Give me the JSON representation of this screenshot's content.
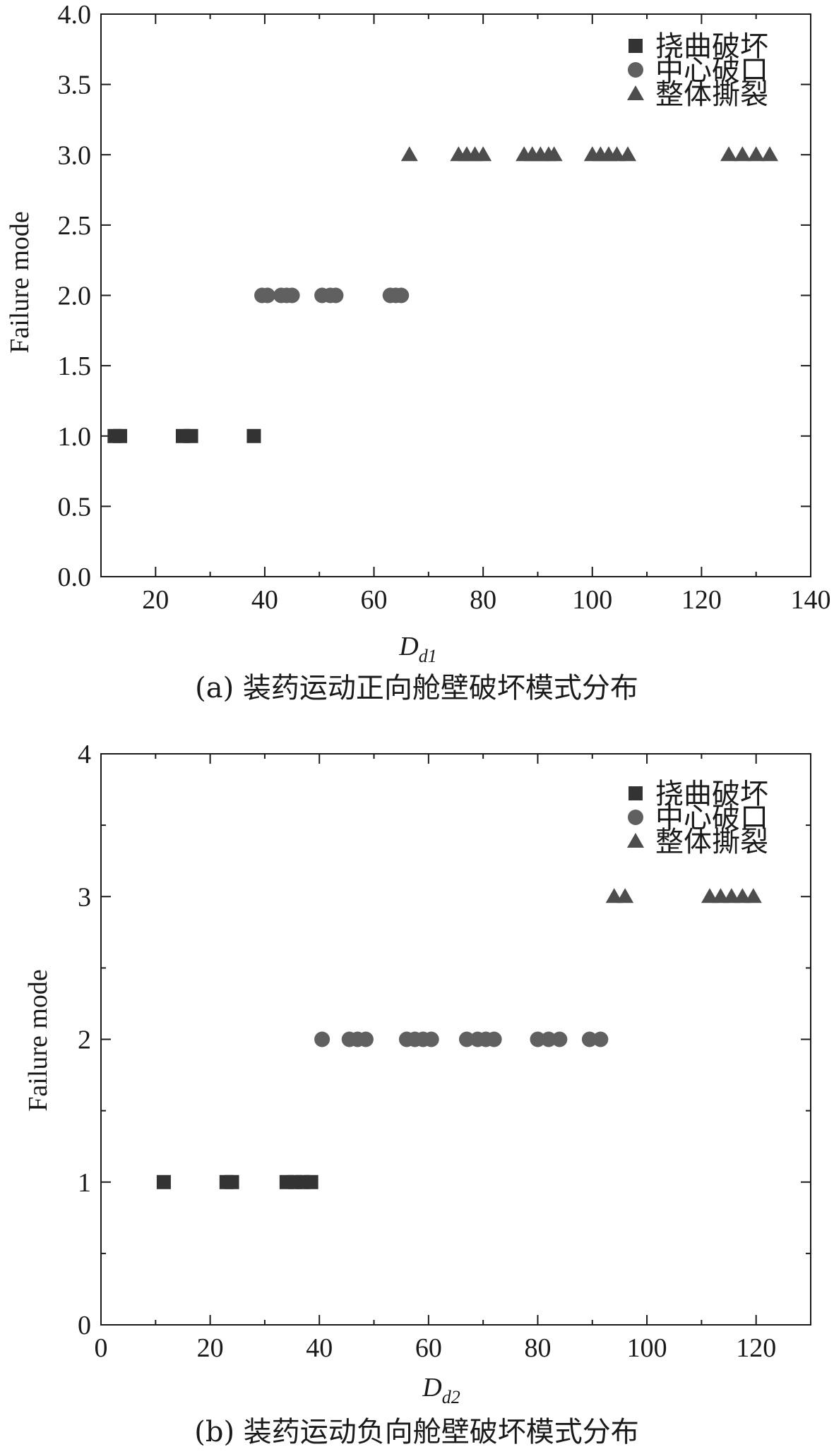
{
  "chart_data": [
    {
      "type": "scatter",
      "caption": "(a) 装药运动正向舱壁破坏模式分布",
      "xlabel_main": "D",
      "xlabel_sub": "d1",
      "ylabel": "Failure mode",
      "xlim": [
        10,
        140
      ],
      "ylim": [
        0,
        4
      ],
      "x_ticks": [
        20,
        40,
        60,
        80,
        100,
        120,
        140
      ],
      "y_ticks": [
        "0.0",
        "0.5",
        "1.0",
        "1.5",
        "2.0",
        "2.5",
        "3.0",
        "3.5",
        "4.0"
      ],
      "legend_position": "top-right",
      "series": [
        {
          "name": "挠曲破坏",
          "marker": "square",
          "color": "#333333",
          "y": 1,
          "x": [
            12.5,
            13.5,
            25,
            26.5,
            38
          ]
        },
        {
          "name": "中心破口",
          "marker": "circle",
          "color": "#606060",
          "y": 2,
          "x": [
            39.5,
            40.5,
            43,
            44,
            45,
            50.5,
            52,
            53,
            63,
            64,
            65
          ]
        },
        {
          "name": "整体撕裂",
          "marker": "triangle",
          "color": "#4d4d4d",
          "y": 3,
          "x": [
            66.5,
            75.5,
            77,
            78.5,
            80,
            87.5,
            89,
            90.5,
            92,
            93,
            100,
            101.5,
            103,
            104.5,
            106.5,
            125,
            127.5,
            130,
            132.5
          ]
        }
      ]
    },
    {
      "type": "scatter",
      "caption": "(b) 装药运动负向舱壁破坏模式分布",
      "xlabel_main": "D",
      "xlabel_sub": "d2",
      "ylabel": "Failure mode",
      "xlim": [
        0,
        130
      ],
      "ylim": [
        0,
        4
      ],
      "x_ticks": [
        0,
        20,
        40,
        60,
        80,
        100,
        120
      ],
      "y_ticks": [
        "0",
        "1",
        "2",
        "3",
        "4"
      ],
      "legend_position": "top-right",
      "series": [
        {
          "name": "挠曲破坏",
          "marker": "square",
          "color": "#333333",
          "y": 1,
          "x": [
            11.5,
            23,
            24,
            34,
            35.5,
            37,
            38.5
          ]
        },
        {
          "name": "中心破口",
          "marker": "circle",
          "color": "#606060",
          "y": 2,
          "x": [
            40.5,
            45.5,
            47,
            48.5,
            56,
            57.5,
            59,
            60.5,
            67,
            69,
            70.5,
            72,
            80,
            82,
            84,
            89.5,
            91.5
          ]
        },
        {
          "name": "整体撕裂",
          "marker": "triangle",
          "color": "#4d4d4d",
          "y": 3,
          "x": [
            94,
            96,
            111.5,
            113.5,
            115.5,
            117.5,
            119.5
          ]
        }
      ]
    }
  ]
}
